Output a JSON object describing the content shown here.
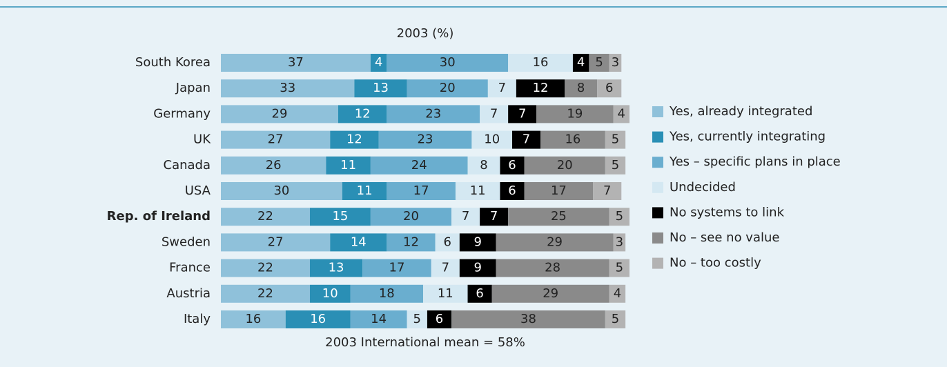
{
  "chart_data": {
    "type": "stacked_bar_horizontal",
    "title": "2003 (%)",
    "footnote": "2003 International mean = 58%",
    "categories": [
      "South Korea",
      "Japan",
      "Germany",
      "UK",
      "Canada",
      "USA",
      "Rep. of Ireland",
      "Sweden",
      "France",
      "Austria",
      "Italy"
    ],
    "bold_categories": [
      6
    ],
    "series": [
      {
        "name": "Yes, already integrated",
        "color": "#8fc1da",
        "label_color": "#222222",
        "values": [
          37,
          33,
          29,
          27,
          26,
          30,
          22,
          27,
          22,
          22,
          16
        ]
      },
      {
        "name": "Yes, currently integrating",
        "color": "#2a8fb5",
        "label_color": "#ffffff",
        "values": [
          4,
          13,
          12,
          12,
          11,
          11,
          15,
          14,
          13,
          10,
          16
        ]
      },
      {
        "name": "Yes – specific plans in place",
        "color": "#6aaecf",
        "label_color": "#222222",
        "values": [
          30,
          20,
          23,
          23,
          24,
          17,
          20,
          12,
          17,
          18,
          14
        ]
      },
      {
        "name": "Undecided",
        "color": "#d4e8f2",
        "label_color": "#222222",
        "values": [
          16,
          7,
          7,
          10,
          8,
          11,
          7,
          6,
          7,
          11,
          5
        ]
      },
      {
        "name": "No systems to link",
        "color": "#000000",
        "label_color": "#ffffff",
        "values": [
          4,
          12,
          7,
          7,
          6,
          6,
          7,
          9,
          9,
          6,
          6
        ]
      },
      {
        "name": "No – see no value",
        "color": "#8a8a8a",
        "label_color": "#222222",
        "values": [
          5,
          8,
          19,
          16,
          20,
          17,
          25,
          29,
          28,
          29,
          38
        ]
      },
      {
        "name": "No – too costly",
        "color": "#b3b3b3",
        "label_color": "#222222",
        "values": [
          3,
          6,
          4,
          5,
          5,
          7,
          5,
          3,
          5,
          4,
          5
        ]
      }
    ]
  }
}
